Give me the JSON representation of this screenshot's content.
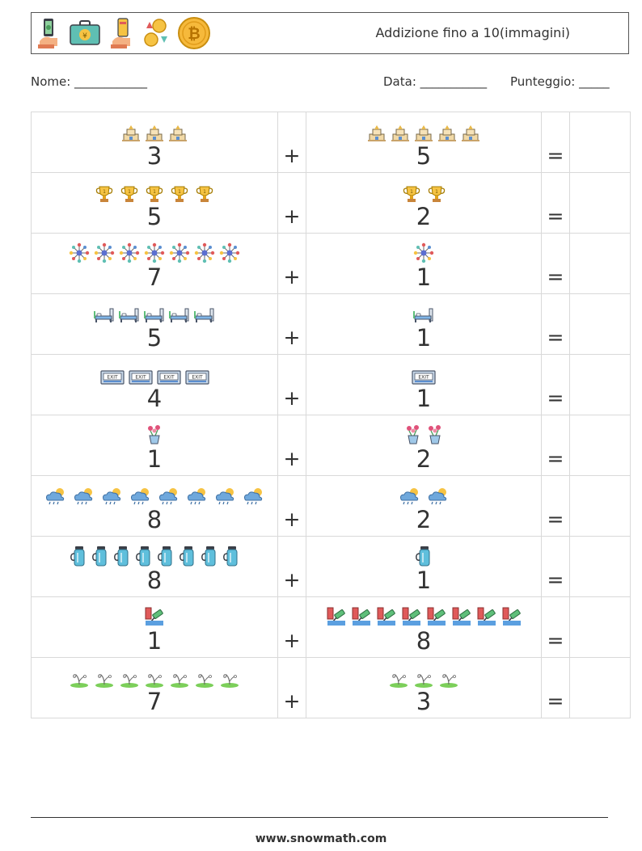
{
  "header": {
    "title": "Addizione fino a 10(immagini)",
    "icons": [
      "money-hand-icon",
      "yen-briefcase-icon",
      "card-hand-icon",
      "coin-exchange-icon",
      "bitcoin-coin-icon"
    ]
  },
  "form": {
    "nome_label": "Nome: ____________",
    "data_label": "Data: ___________",
    "punteggio_label": "Punteggio: _____"
  },
  "plus": "+",
  "equals": "=",
  "problems": [
    {
      "a": 3,
      "b": 5,
      "icon": "temple-icon"
    },
    {
      "a": 5,
      "b": 2,
      "icon": "trophy-icon"
    },
    {
      "a": 7,
      "b": 1,
      "icon": "molecule-icon"
    },
    {
      "a": 5,
      "b": 1,
      "icon": "hospital-bed-icon"
    },
    {
      "a": 4,
      "b": 1,
      "icon": "exit-sign-icon"
    },
    {
      "a": 1,
      "b": 2,
      "icon": "flower-pot-icon"
    },
    {
      "a": 8,
      "b": 2,
      "icon": "rain-cloud-sun-icon"
    },
    {
      "a": 8,
      "b": 1,
      "icon": "thermos-icon"
    },
    {
      "a": 1,
      "b": 8,
      "icon": "paint-roller-icon"
    },
    {
      "a": 7,
      "b": 3,
      "icon": "sprout-icon"
    }
  ],
  "footer": "www.snowmath.com"
}
